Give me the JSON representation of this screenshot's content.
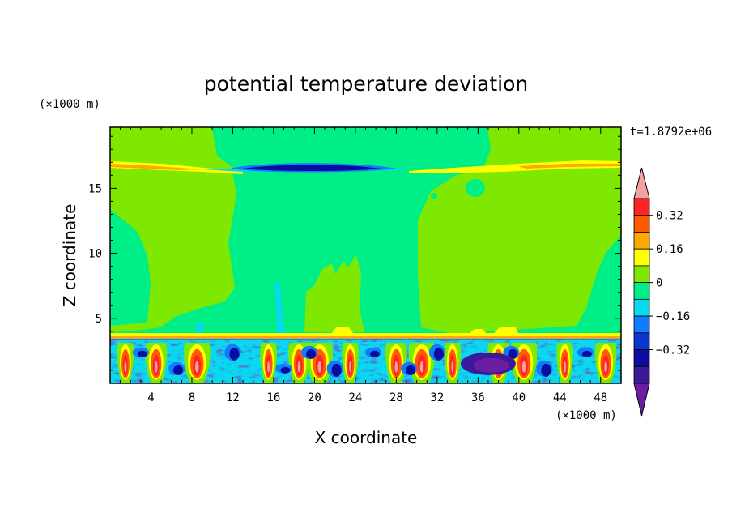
{
  "chart_data": {
    "type": "heatmap",
    "title": "potential temperature deviation",
    "xlabel": "X coordinate",
    "ylabel": "Z coordinate",
    "x_unit": "(×1000 m)",
    "y_unit": "(×1000 m)",
    "time_label": "t=1.8792e+06",
    "xlim": [
      0,
      50
    ],
    "ylim": [
      0,
      19.7
    ],
    "x_ticks": [
      4,
      8,
      12,
      16,
      20,
      24,
      28,
      32,
      36,
      40,
      44,
      48
    ],
    "y_ticks": [
      5,
      10,
      15
    ],
    "colorbar": {
      "levels": [
        -0.48,
        -0.4,
        -0.32,
        -0.24,
        -0.16,
        -0.08,
        0,
        0.08,
        0.16,
        0.24,
        0.32,
        0.4
      ],
      "colors": [
        "#6a1fa0",
        "#3a1a9a",
        "#0c0c9e",
        "#0a36d0",
        "#0f7bff",
        "#08d8f0",
        "#00ee88",
        "#7ee800",
        "#ffff00",
        "#ffa800",
        "#ff5a00",
        "#ff2424",
        "#f2a2a2"
      ],
      "tick_labels": [
        "0.32",
        "0.16",
        "0",
        "−0.16",
        "−0.32"
      ],
      "tick_values": [
        0.32,
        0.16,
        0,
        -0.16,
        -0.32
      ]
    },
    "regions": {
      "background_value": -0.04,
      "upper_positive_band": {
        "z": 16.8,
        "value": 0.2
      },
      "upper_negative_lens": {
        "x": [
          12.5,
          28.5
        ],
        "z": 16.9,
        "value": -0.35
      },
      "positive_plumes_x": [
        1.5,
        4.5,
        8.5,
        15.5,
        18.5,
        20.5,
        23.5,
        28,
        30.5,
        33.5,
        38,
        40.5,
        44.5,
        48.5
      ],
      "boundary_layer_top_z": 3.5
    }
  }
}
